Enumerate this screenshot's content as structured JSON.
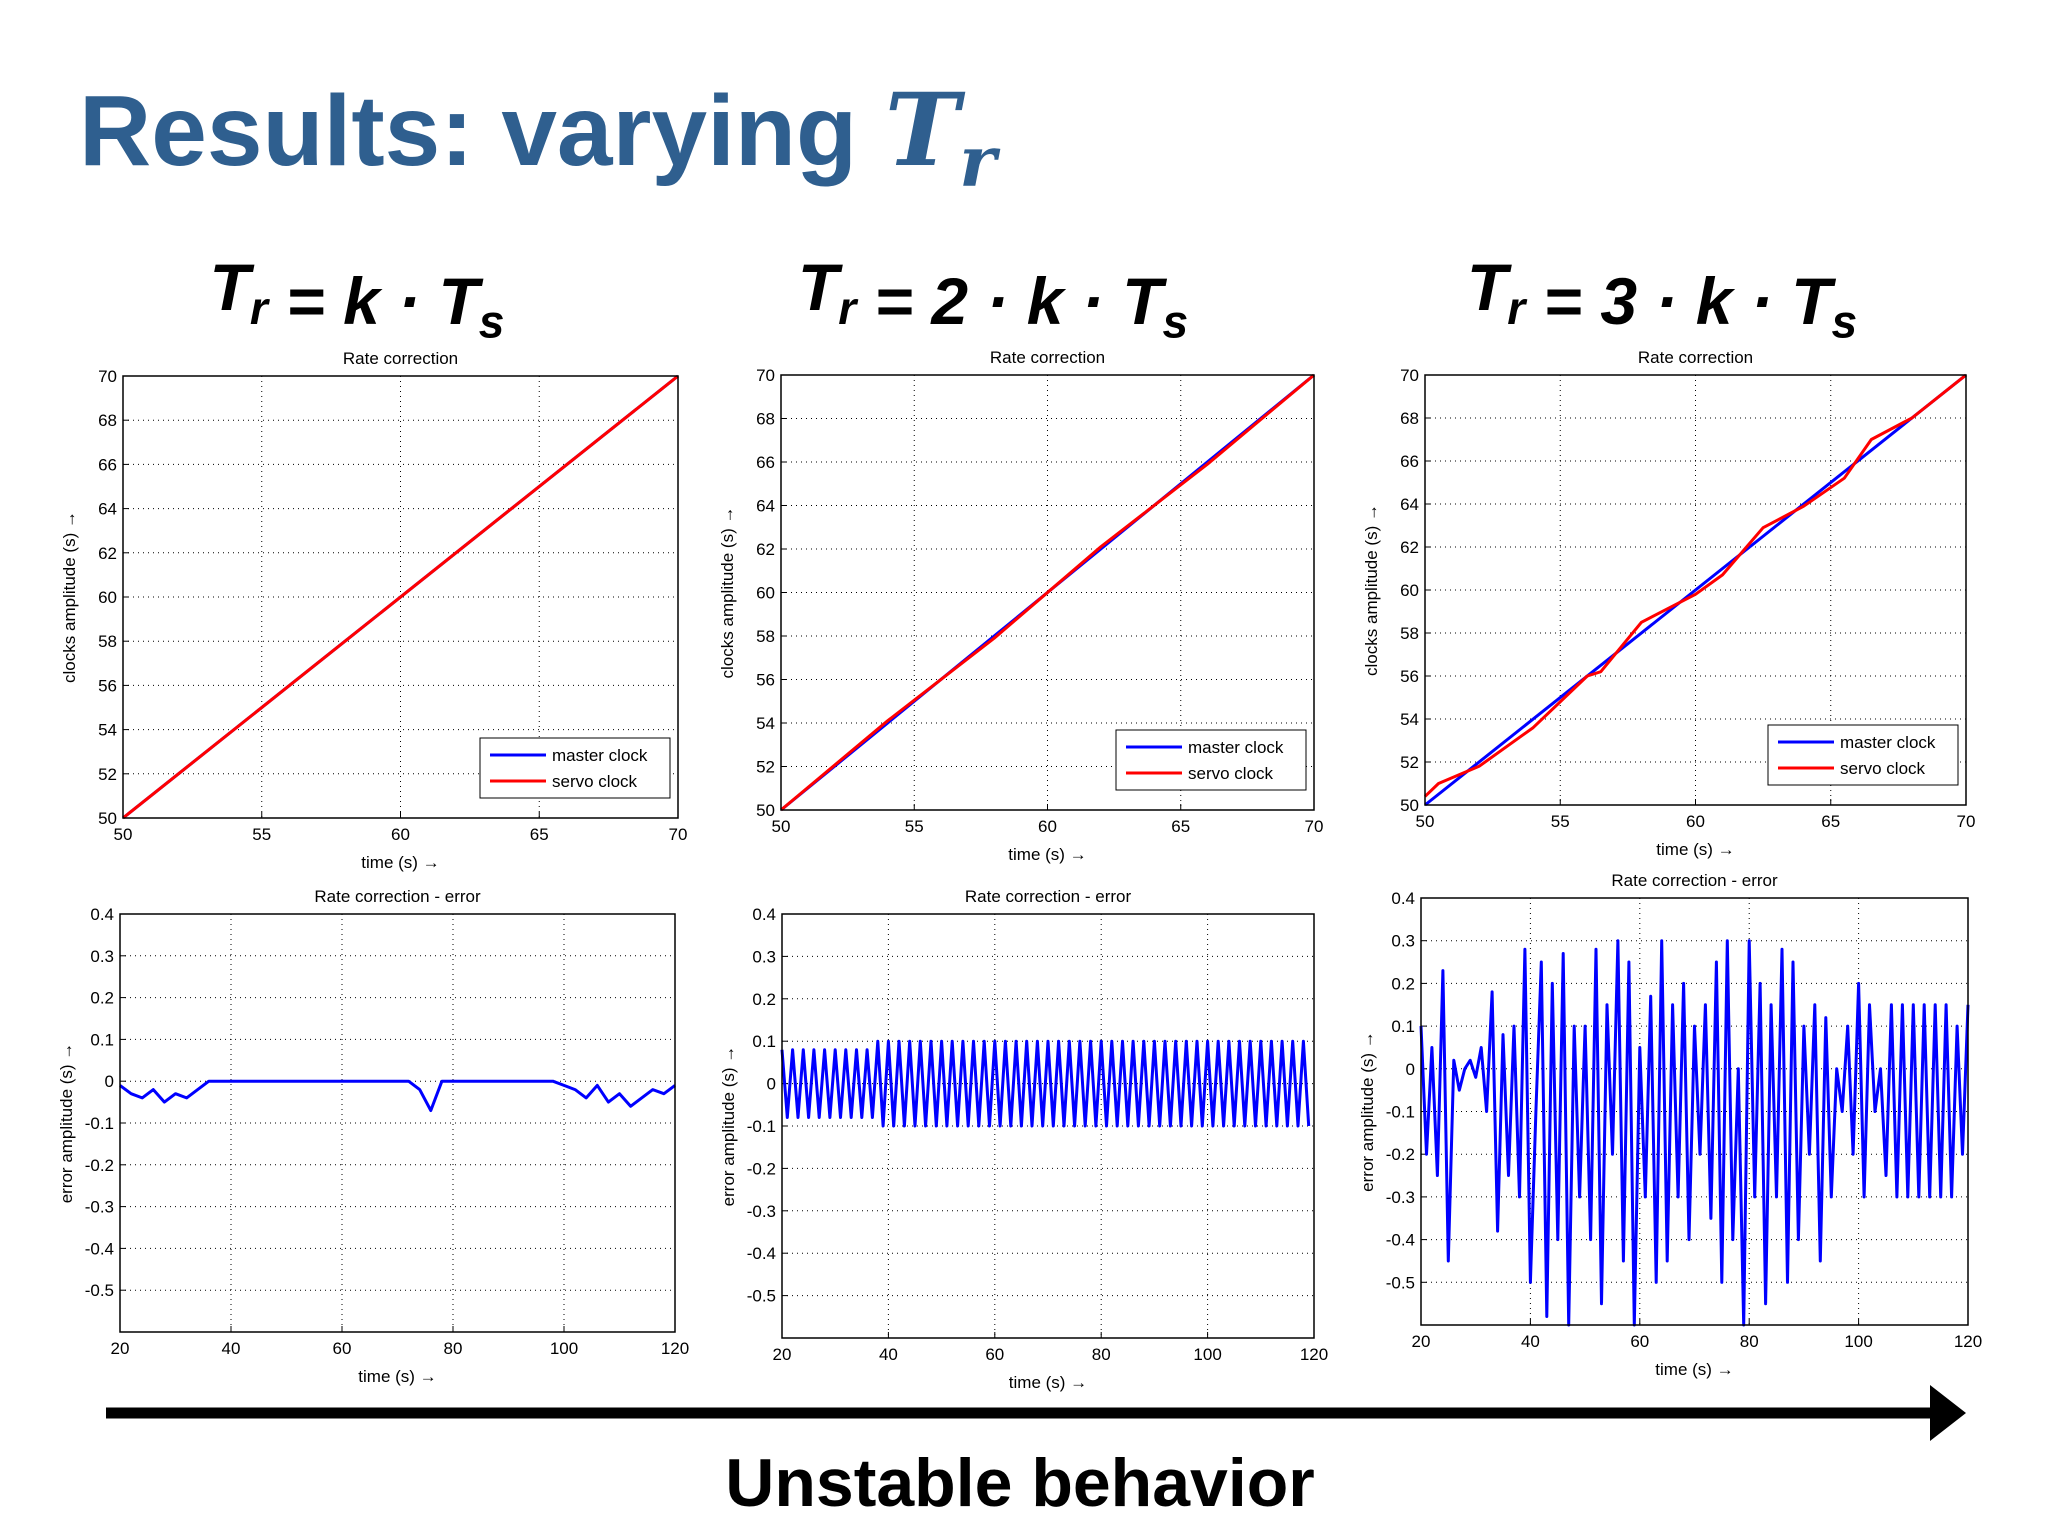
{
  "title": [
    {
      "text": "Results: varying "
    },
    {
      "text": "T",
      "sub": "r"
    }
  ],
  "headings": [
    [
      {
        "text": "T",
        "sub": "r"
      },
      {
        "text": " = k · "
      },
      {
        "text": "T",
        "sub": "s"
      }
    ],
    [
      {
        "text": "T",
        "sub": "r"
      },
      {
        "text": " = 2 · k · "
      },
      {
        "text": "T",
        "sub": "s"
      }
    ],
    [
      {
        "text": "T",
        "sub": "r"
      },
      {
        "text": " = 3 · k · "
      },
      {
        "text": "T",
        "sub": "s"
      }
    ]
  ],
  "footer": "Unstable behavior",
  "chart_data": [
    {
      "type": "line",
      "title": "Rate correction",
      "xlabel": "time (s) →",
      "ylabel": "clocks amplitude (s) →",
      "xlim": [
        50,
        70
      ],
      "xticks": [
        50,
        55,
        60,
        65,
        70
      ],
      "ylim": [
        50,
        70
      ],
      "yticks": [
        50,
        52,
        54,
        56,
        58,
        60,
        62,
        64,
        66,
        68,
        70
      ],
      "grid": true,
      "legend": "lower right",
      "series": [
        {
          "name": "master clock",
          "color": "#0000ff",
          "x": [
            50,
            70
          ],
          "values": [
            50,
            70
          ]
        },
        {
          "name": "servo clock",
          "color": "#ff0000",
          "x": [
            50,
            70
          ],
          "values": [
            50,
            70
          ]
        }
      ]
    },
    {
      "type": "line",
      "title": "Rate correction",
      "xlabel": "time (s) →",
      "ylabel": "clocks amplitude (s) →",
      "xlim": [
        50,
        70
      ],
      "xticks": [
        50,
        55,
        60,
        65,
        70
      ],
      "ylim": [
        50,
        70
      ],
      "yticks": [
        50,
        52,
        54,
        56,
        58,
        60,
        62,
        64,
        66,
        68,
        70
      ],
      "grid": true,
      "legend": "lower right",
      "series": [
        {
          "name": "master clock",
          "color": "#0000ff",
          "x": [
            50,
            70
          ],
          "values": [
            50,
            70
          ]
        },
        {
          "name": "servo clock",
          "color": "#ff0000",
          "x": [
            50,
            54,
            58,
            62,
            66,
            70
          ],
          "values": [
            50,
            54.1,
            57.9,
            62.1,
            65.9,
            70
          ]
        }
      ]
    },
    {
      "type": "line",
      "title": "Rate correction",
      "xlabel": "time (s) →",
      "ylabel": "clocks amplitude (s) →",
      "xlim": [
        50,
        70
      ],
      "xticks": [
        50,
        55,
        60,
        65,
        70
      ],
      "ylim": [
        50,
        70
      ],
      "yticks": [
        50,
        52,
        54,
        56,
        58,
        60,
        62,
        64,
        66,
        68,
        70
      ],
      "grid": true,
      "legend": "lower right",
      "series": [
        {
          "name": "master clock",
          "color": "#0000ff",
          "x": [
            50,
            70
          ],
          "values": [
            50,
            70
          ]
        },
        {
          "name": "servo clock",
          "color": "#ff0000",
          "x": [
            50,
            50.5,
            52,
            54,
            56,
            56.5,
            58,
            60,
            61,
            62.5,
            64,
            65.5,
            66.5,
            68,
            70
          ],
          "values": [
            50.4,
            51,
            51.8,
            53.6,
            56,
            56.2,
            58.5,
            59.8,
            60.7,
            62.9,
            63.9,
            65.2,
            67,
            68,
            70
          ]
        }
      ]
    },
    {
      "type": "line",
      "title": "Rate correction - error",
      "xlabel": "time (s) →",
      "ylabel": "error amplitude (s) →",
      "xlim": [
        20,
        120
      ],
      "xticks": [
        20,
        40,
        60,
        80,
        100,
        120
      ],
      "ylim": [
        -0.6,
        0.4
      ],
      "yticks": [
        -0.5,
        -0.4,
        -0.3,
        -0.2,
        -0.1,
        0,
        0.1,
        0.2,
        0.3,
        0.4
      ],
      "grid": true,
      "series": [
        {
          "color": "#0000ff",
          "x": [
            20,
            22,
            24,
            26,
            28,
            30,
            32,
            34,
            36,
            38,
            40,
            42,
            44,
            46,
            48,
            50,
            52,
            54,
            56,
            58,
            60,
            62,
            64,
            66,
            68,
            70,
            72,
            74,
            76,
            78,
            80,
            82,
            84,
            86,
            88,
            90,
            92,
            94,
            96,
            98,
            100,
            102,
            104,
            106,
            108,
            110,
            112,
            114,
            116,
            118,
            120
          ],
          "values": [
            -0.01,
            -0.03,
            -0.04,
            -0.02,
            -0.05,
            -0.03,
            -0.04,
            -0.02,
            0,
            0,
            0,
            0,
            0,
            0,
            0,
            0,
            0,
            0,
            0,
            0,
            0,
            0,
            0,
            0,
            0,
            0,
            0,
            -0.02,
            -0.07,
            0,
            0,
            0,
            0,
            0,
            0,
            0,
            0,
            0,
            0,
            0,
            -0.01,
            -0.02,
            -0.04,
            -0.01,
            -0.05,
            -0.03,
            -0.06,
            -0.04,
            -0.02,
            -0.03,
            -0.01
          ]
        }
      ]
    },
    {
      "type": "line",
      "title": "Rate correction - error",
      "xlabel": "time (s) →",
      "ylabel": "error amplitude (s) →",
      "xlim": [
        20,
        120
      ],
      "xticks": [
        20,
        40,
        60,
        80,
        100,
        120
      ],
      "ylim": [
        -0.6,
        0.4
      ],
      "yticks": [
        -0.5,
        -0.4,
        -0.3,
        -0.2,
        -0.1,
        0,
        0.1,
        0.2,
        0.3,
        0.4
      ],
      "grid": true,
      "series": [
        {
          "color": "#0000ff",
          "x": [
            20,
            21,
            22,
            23,
            24,
            25,
            26,
            27,
            28,
            29,
            30,
            31,
            32,
            33,
            34,
            35,
            36,
            37,
            38,
            39,
            40,
            41,
            42,
            43,
            44,
            45,
            46,
            47,
            48,
            49,
            50,
            51,
            52,
            53,
            54,
            55,
            56,
            57,
            58,
            59,
            60,
            61,
            62,
            63,
            64,
            65,
            66,
            67,
            68,
            69,
            70,
            71,
            72,
            73,
            74,
            75,
            76,
            77,
            78,
            79,
            80,
            81,
            82,
            83,
            84,
            85,
            86,
            87,
            88,
            89,
            90,
            91,
            92,
            93,
            94,
            95,
            96,
            97,
            98,
            99,
            100,
            101,
            102,
            103,
            104,
            105,
            106,
            107,
            108,
            109,
            110,
            111,
            112,
            113,
            114,
            115,
            116,
            117,
            118,
            119
          ],
          "values": [
            0.08,
            -0.08,
            0.08,
            -0.08,
            0.08,
            -0.08,
            0.08,
            -0.08,
            0.08,
            -0.08,
            0.08,
            -0.08,
            0.08,
            -0.08,
            0.08,
            -0.08,
            0.08,
            -0.08,
            0.1,
            -0.1,
            0.1,
            -0.1,
            0.1,
            -0.1,
            0.1,
            -0.1,
            0.1,
            -0.1,
            0.1,
            -0.1,
            0.1,
            -0.1,
            0.1,
            -0.1,
            0.1,
            -0.1,
            0.1,
            -0.1,
            0.1,
            -0.1,
            0.1,
            -0.1,
            0.1,
            -0.1,
            0.1,
            -0.1,
            0.1,
            -0.1,
            0.1,
            -0.1,
            0.1,
            -0.1,
            0.1,
            -0.1,
            0.1,
            -0.1,
            0.1,
            -0.1,
            0.1,
            -0.1,
            0.1,
            -0.1,
            0.1,
            -0.1,
            0.1,
            -0.1,
            0.1,
            -0.1,
            0.1,
            -0.1,
            0.1,
            -0.1,
            0.1,
            -0.1,
            0.1,
            -0.1,
            0.1,
            -0.1,
            0.1,
            -0.1,
            0.1,
            -0.1,
            0.1,
            -0.1,
            0.1,
            -0.1,
            0.1,
            -0.1,
            0.1,
            -0.1,
            0.1,
            -0.1,
            0.1,
            -0.1,
            0.1,
            -0.1,
            0.1,
            -0.1,
            0.1,
            -0.1
          ]
        }
      ]
    },
    {
      "type": "line",
      "title": "Rate correction - error",
      "xlabel": "time (s) →",
      "ylabel": "error amplitude (s) →",
      "xlim": [
        20,
        120
      ],
      "xticks": [
        20,
        40,
        60,
        80,
        100,
        120
      ],
      "ylim": [
        -0.6,
        0.4
      ],
      "yticks": [
        -0.5,
        -0.4,
        -0.3,
        -0.2,
        -0.1,
        0,
        0.1,
        0.2,
        0.3,
        0.4
      ],
      "grid": true,
      "series": [
        {
          "color": "#0000ff",
          "x": [
            20,
            21,
            22,
            23,
            24,
            25,
            26,
            27,
            28,
            29,
            30,
            31,
            32,
            33,
            34,
            35,
            36,
            37,
            38,
            39,
            40,
            41,
            42,
            43,
            44,
            45,
            46,
            47,
            48,
            49,
            50,
            51,
            52,
            53,
            54,
            55,
            56,
            57,
            58,
            59,
            60,
            61,
            62,
            63,
            64,
            65,
            66,
            67,
            68,
            69,
            70,
            71,
            72,
            73,
            74,
            75,
            76,
            77,
            78,
            79,
            80,
            81,
            82,
            83,
            84,
            85,
            86,
            87,
            88,
            89,
            90,
            91,
            92,
            93,
            94,
            95,
            96,
            97,
            98,
            99,
            100,
            101,
            102,
            103,
            104,
            105,
            106,
            107,
            108,
            109,
            110,
            111,
            112,
            113,
            114,
            115,
            116,
            117,
            118,
            119,
            120
          ],
          "values": [
            0.1,
            -0.2,
            0.05,
            -0.25,
            0.23,
            -0.45,
            0.02,
            -0.05,
            0,
            0.02,
            -0.02,
            0.05,
            -0.1,
            0.18,
            -0.38,
            0.08,
            -0.25,
            0.1,
            -0.3,
            0.28,
            -0.5,
            -0.1,
            0.25,
            -0.58,
            0.2,
            -0.4,
            0.27,
            -0.6,
            0.1,
            -0.3,
            0.1,
            -0.4,
            0.28,
            -0.55,
            0.15,
            -0.2,
            0.3,
            -0.45,
            0.25,
            -0.6,
            0.05,
            -0.3,
            0.17,
            -0.5,
            0.3,
            -0.45,
            0.15,
            -0.3,
            0.2,
            -0.4,
            0.1,
            -0.2,
            0.15,
            -0.35,
            0.25,
            -0.5,
            0.3,
            -0.4,
            0,
            -0.6,
            0.3,
            -0.3,
            0.2,
            -0.55,
            0.15,
            -0.3,
            0.28,
            -0.5,
            0.25,
            -0.4,
            0.1,
            -0.2,
            0.15,
            -0.45,
            0.12,
            -0.3,
            0,
            -0.1,
            0.1,
            -0.2,
            0.2,
            -0.3,
            0.15,
            -0.1,
            0,
            -0.25,
            0.15,
            -0.3,
            0.15,
            -0.3,
            0.15,
            -0.3,
            0.15,
            -0.3,
            0.15,
            -0.3,
            0.15,
            -0.3,
            0.1,
            -0.2,
            0.15
          ]
        }
      ]
    }
  ]
}
